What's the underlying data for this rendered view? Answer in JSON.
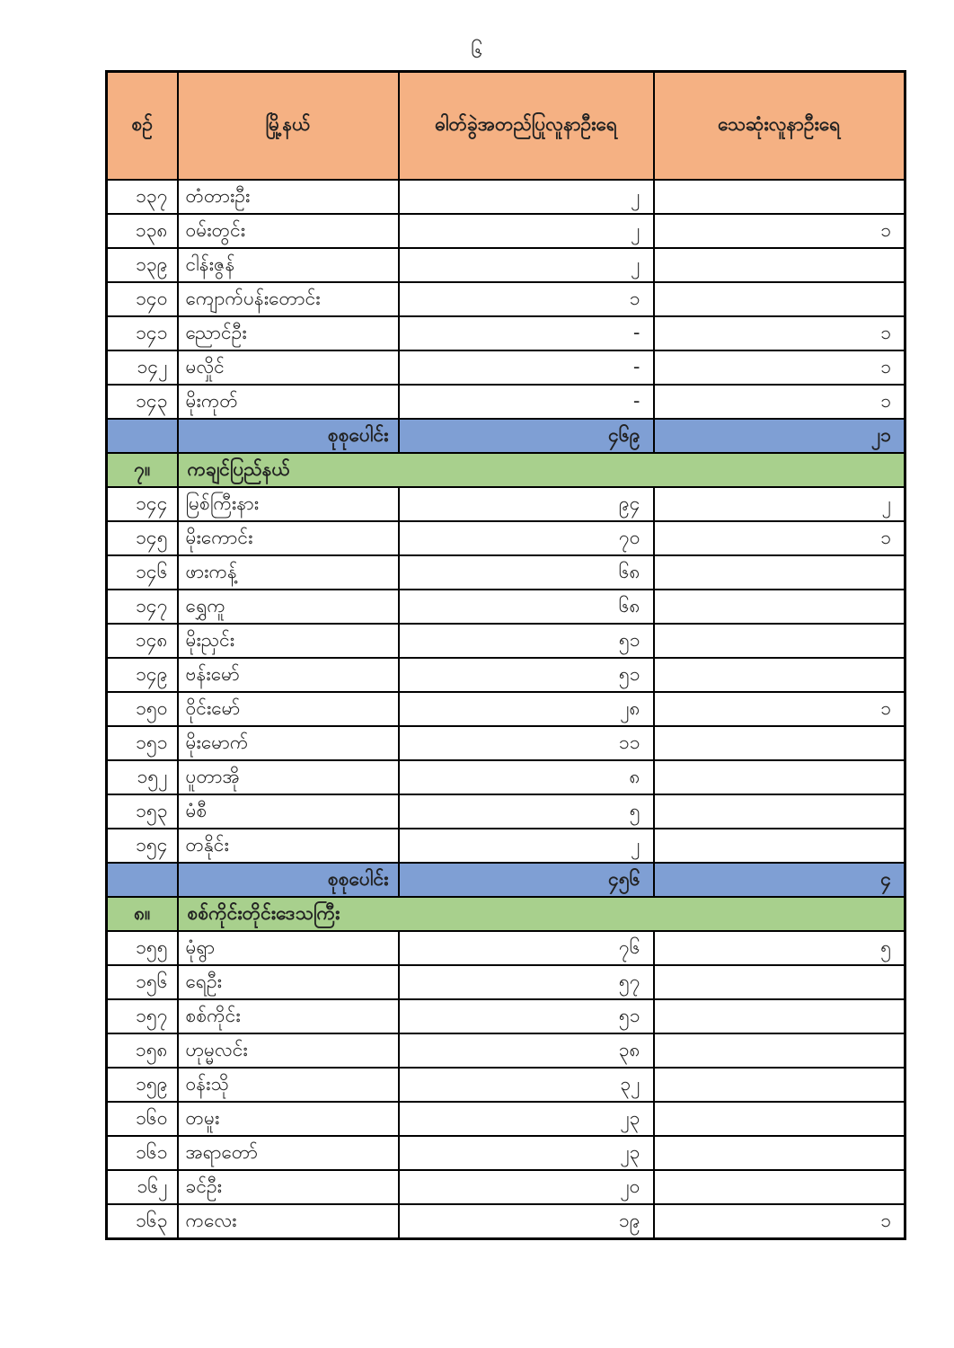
{
  "page_number": "၆",
  "colors": {
    "header_bg": "#F5B183",
    "total_bg": "#7F9FD4",
    "section_bg": "#A8D08D",
    "border": "#000000"
  },
  "table": {
    "headers": [
      "စဉ်",
      "မြို့နယ်",
      "ဓါတ်ခွဲအတည်ပြုလူနာဦးရေ",
      "သေဆုံးလူနာဦးရေ"
    ],
    "rows": [
      {
        "type": "data",
        "no": "၁၃၇",
        "township": "တံတားဦး",
        "confirmed": "၂",
        "deaths": ""
      },
      {
        "type": "data",
        "no": "၁၃၈",
        "township": "ဝမ်းတွင်း",
        "confirmed": "၂",
        "deaths": "၁"
      },
      {
        "type": "data",
        "no": "၁၃၉",
        "township": "ငါန်းဇွန်",
        "confirmed": "၂",
        "deaths": ""
      },
      {
        "type": "data",
        "no": "၁၄၀",
        "township": "ကျောက်ပန်းတောင်း",
        "confirmed": "၁",
        "deaths": ""
      },
      {
        "type": "data",
        "no": "၁၄၁",
        "township": "ညောင်ဦး",
        "confirmed": "-",
        "deaths": "၁"
      },
      {
        "type": "data",
        "no": "၁၄၂",
        "township": "မလှိုင်",
        "confirmed": "-",
        "deaths": "၁"
      },
      {
        "type": "data",
        "no": "၁၄၃",
        "township": "မိုးကုတ်",
        "confirmed": "-",
        "deaths": "၁"
      },
      {
        "type": "total",
        "label": "စုစုပေါင်း",
        "confirmed": "၄၆၉",
        "deaths": "၂၁"
      },
      {
        "type": "section",
        "no": "၇။",
        "name": "ကချင်ပြည်နယ်"
      },
      {
        "type": "data",
        "no": "၁၄၄",
        "township": "မြစ်ကြီးနား",
        "confirmed": "၉၄",
        "deaths": "၂"
      },
      {
        "type": "data",
        "no": "၁၄၅",
        "township": "မိုးကောင်း",
        "confirmed": "၇၀",
        "deaths": "၁"
      },
      {
        "type": "data",
        "no": "၁၄၆",
        "township": "ဖားကန့်",
        "confirmed": "၆၈",
        "deaths": ""
      },
      {
        "type": "data",
        "no": "၁၄၇",
        "township": "ရွှေကူ",
        "confirmed": "၆၈",
        "deaths": ""
      },
      {
        "type": "data",
        "no": "၁၄၈",
        "township": "မိုးညှင်း",
        "confirmed": "၅၁",
        "deaths": ""
      },
      {
        "type": "data",
        "no": "၁၄၉",
        "township": "ဗန်းမော်",
        "confirmed": "၅၁",
        "deaths": ""
      },
      {
        "type": "data",
        "no": "၁၅၀",
        "township": "ဝိုင်းမော်",
        "confirmed": "၂၈",
        "deaths": "၁"
      },
      {
        "type": "data",
        "no": "၁၅၁",
        "township": "မိုးမောက်",
        "confirmed": "၁၁",
        "deaths": ""
      },
      {
        "type": "data",
        "no": "၁၅၂",
        "township": "ပူတာအို",
        "confirmed": "၈",
        "deaths": ""
      },
      {
        "type": "data",
        "no": "၁၅၃",
        "township": "မံစီ",
        "confirmed": "၅",
        "deaths": ""
      },
      {
        "type": "data",
        "no": "၁၅၄",
        "township": "တနိုင်း",
        "confirmed": "၂",
        "deaths": ""
      },
      {
        "type": "total",
        "label": "စုစုပေါင်း",
        "confirmed": "၄၅၆",
        "deaths": "၄"
      },
      {
        "type": "section",
        "no": "၈။",
        "name": "စစ်ကိုင်းတိုင်းဒေသကြီး"
      },
      {
        "type": "data",
        "no": "၁၅၅",
        "township": "မုံရွာ",
        "confirmed": "၇၆",
        "deaths": "၅"
      },
      {
        "type": "data",
        "no": "၁၅၆",
        "township": "ရေဦး",
        "confirmed": "၅၇",
        "deaths": ""
      },
      {
        "type": "data",
        "no": "၁၅၇",
        "township": "စစ်ကိုင်း",
        "confirmed": "၅၁",
        "deaths": ""
      },
      {
        "type": "data",
        "no": "၁၅၈",
        "township": "ဟုမ္မလင်း",
        "confirmed": "၃၈",
        "deaths": ""
      },
      {
        "type": "data",
        "no": "၁၅၉",
        "township": "ဝန်းသို",
        "confirmed": "၃၂",
        "deaths": ""
      },
      {
        "type": "data",
        "no": "၁၆၀",
        "township": "တမူး",
        "confirmed": "၂၃",
        "deaths": ""
      },
      {
        "type": "data",
        "no": "၁၆၁",
        "township": "အရာတော်",
        "confirmed": "၂၃",
        "deaths": ""
      },
      {
        "type": "data",
        "no": "၁၆၂",
        "township": "ခင်ဦး",
        "confirmed": "၂၀",
        "deaths": ""
      },
      {
        "type": "data",
        "no": "၁၆၃",
        "township": "ကလေး",
        "confirmed": "၁၉",
        "deaths": "၁"
      }
    ]
  }
}
